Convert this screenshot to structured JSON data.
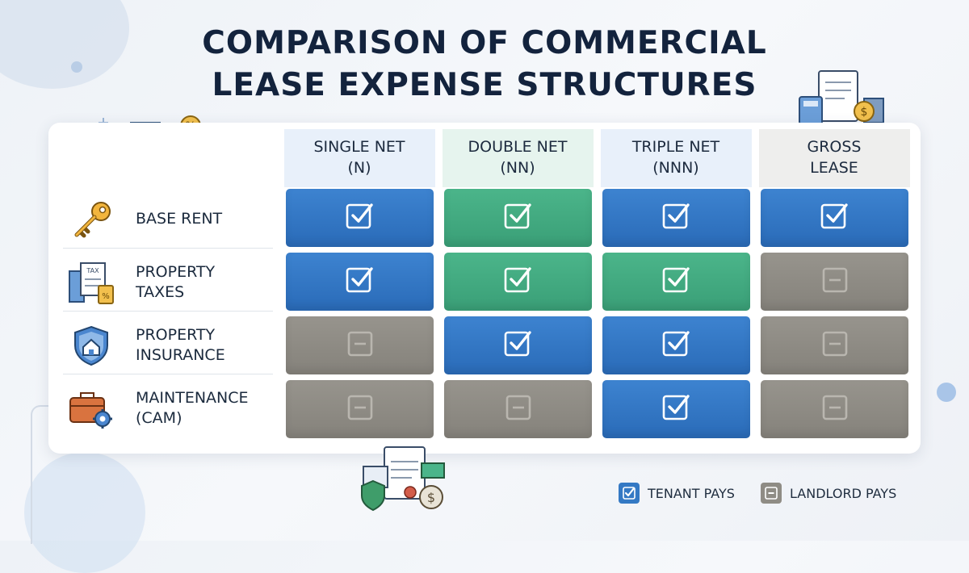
{
  "title_lines": [
    "COMPARISON OF COMMERCIAL",
    "LEASE EXPENSE STRUCTURES"
  ],
  "columns": [
    {
      "label": "SINGLE NET\n(N)"
    },
    {
      "label": "DOUBLE NET\n(NN)"
    },
    {
      "label": "TRIPLE NET\n(NNN)"
    },
    {
      "label": "GROSS\nLEASE"
    }
  ],
  "rows": [
    {
      "label": "BASE RENT",
      "icon": "key-icon",
      "cells": [
        "tenant-blue",
        "tenant-green",
        "tenant-blue",
        "tenant-blue"
      ]
    },
    {
      "label": "PROPERTY\nTAXES",
      "icon": "tax-document-icon",
      "cells": [
        "tenant-blue",
        "tenant-green",
        "tenant-green",
        "landlord"
      ]
    },
    {
      "label": "PROPERTY\nINSURANCE",
      "icon": "shield-house-icon",
      "cells": [
        "landlord",
        "tenant-blue",
        "tenant-blue",
        "landlord"
      ]
    },
    {
      "label": "MAINTENANCE\n(CAM)",
      "icon": "toolbox-gear-icon",
      "cells": [
        "landlord",
        "landlord",
        "tenant-blue",
        "landlord"
      ]
    }
  ],
  "legend": {
    "tenant_label": "TENANT PAYS",
    "landlord_label": "LANDLORD PAYS"
  },
  "colors": {
    "tenant_blue": "#3479c4",
    "tenant_green": "#45ad83",
    "landlord_gray": "#8f8c85",
    "title": "#13233d"
  }
}
